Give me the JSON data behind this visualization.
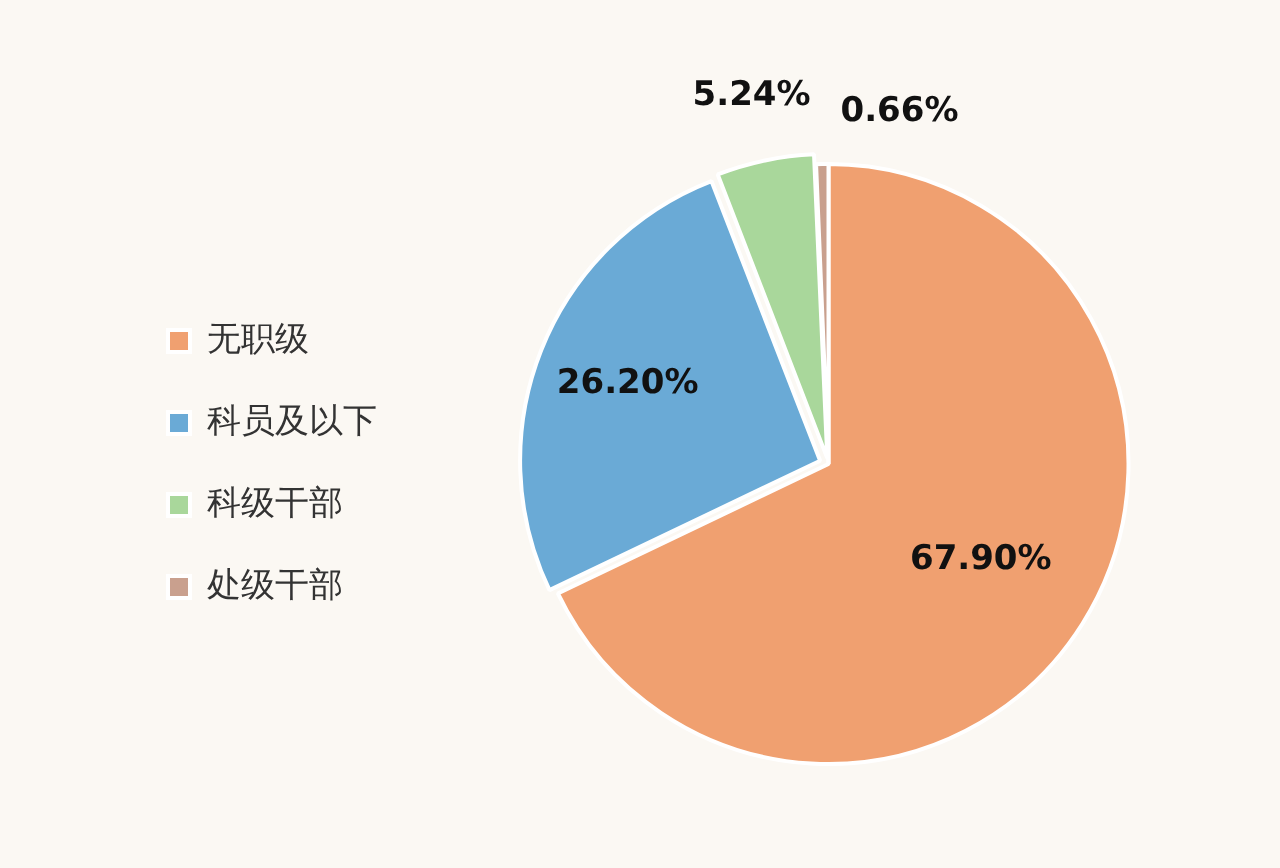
{
  "chart_data": {
    "type": "pie",
    "categories": [
      "无职级",
      "科员及以下",
      "科级干部",
      "处级干部"
    ],
    "values": [
      67.9,
      26.2,
      5.24,
      0.66
    ],
    "colors": [
      "#f0a070",
      "#6aaad6",
      "#a9d79b",
      "#c9a08e"
    ],
    "value_labels": [
      "67.90%",
      "26.20%",
      "5.24%",
      "0.66%"
    ],
    "legend": "left"
  }
}
